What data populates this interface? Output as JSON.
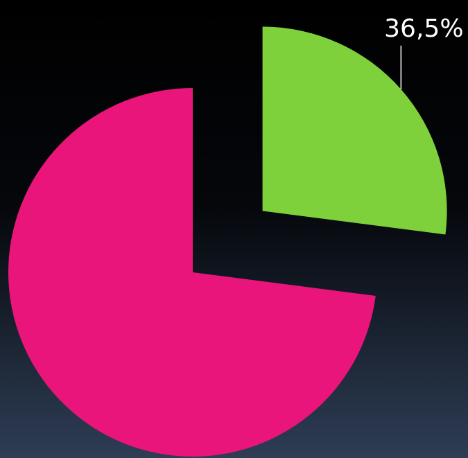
{
  "chart_data": {
    "type": "pie",
    "values": [
      36.5,
      98.5
    ],
    "value_labels": [
      "36,5%",
      null
    ],
    "colors": [
      "#7fd13b",
      "#ea157a"
    ]
  }
}
